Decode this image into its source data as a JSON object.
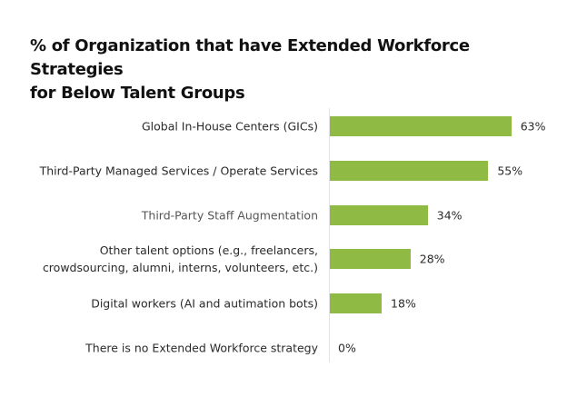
{
  "chart_data": {
    "type": "bar",
    "orientation": "horizontal",
    "title": "% of Organization that have Extended Workforce Strategies for Below Talent Groups",
    "title_lines": [
      "% of Organization that have Extended Workforce Strategies",
      "for Below Talent Groups"
    ],
    "categories": [
      "Global In-House Centers (GICs)",
      "Third-Party Managed Services / Operate Services",
      "Third-Party Staff Augmentation",
      "Other talent options (e.g., freelancers, crowdsourcing, alumni, interns, volunteers, etc.)",
      "Digital workers (AI and autimation bots)",
      "There is no Extended Workforce strategy"
    ],
    "category_lines": [
      [
        "Global In-House Centers (GICs)"
      ],
      [
        "Third-Party Managed Services / Operate Services"
      ],
      [
        "Third-Party Staff Augmentation"
      ],
      [
        "Other talent options (e.g., freelancers,",
        "crowdsourcing, alumni, interns, volunteers, etc.)"
      ],
      [
        "Digital workers (AI and autimation bots)"
      ],
      [
        "There is no Extended Workforce strategy"
      ]
    ],
    "values": [
      63,
      55,
      34,
      28,
      18,
      0
    ],
    "value_labels": [
      "63%",
      "55%",
      "34%",
      "28%",
      "18%",
      "0%"
    ],
    "unit": "%",
    "xlabel": "",
    "ylabel": "",
    "xlim": [
      0,
      100
    ],
    "grid": false,
    "legend": null,
    "bar_color": "#8fbb45",
    "axis_color": "#e3e3e3"
  }
}
